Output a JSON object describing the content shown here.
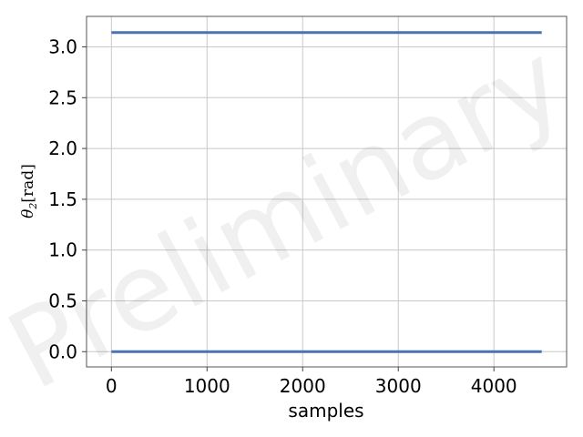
{
  "chart_data": {
    "type": "line",
    "title": "",
    "xlabel": "samples",
    "ylabel_parts": {
      "symbol": "θ",
      "subscript": "2",
      "unit": "[rad]"
    },
    "xlim": [
      -260,
      4760
    ],
    "ylim": [
      -0.15,
      3.3
    ],
    "xticks": [
      0,
      1000,
      2000,
      3000,
      4000
    ],
    "xtick_labels": [
      "0",
      "1000",
      "2000",
      "3000",
      "4000"
    ],
    "yticks": [
      0.0,
      0.5,
      1.0,
      1.5,
      2.0,
      2.5,
      3.0
    ],
    "ytick_labels": [
      "0.0",
      "0.5",
      "1.0",
      "1.5",
      "2.0",
      "2.5",
      "3.0"
    ],
    "grid": true,
    "series": [
      {
        "color": "#4c72b0",
        "segments": [
          {
            "x": [
              0,
              4500
            ],
            "y": [
              3.1416,
              3.1416
            ]
          },
          {
            "x": [
              0,
              4500
            ],
            "y": [
              0.0,
              0.0
            ]
          }
        ]
      }
    ],
    "watermark": "Preliminary"
  }
}
